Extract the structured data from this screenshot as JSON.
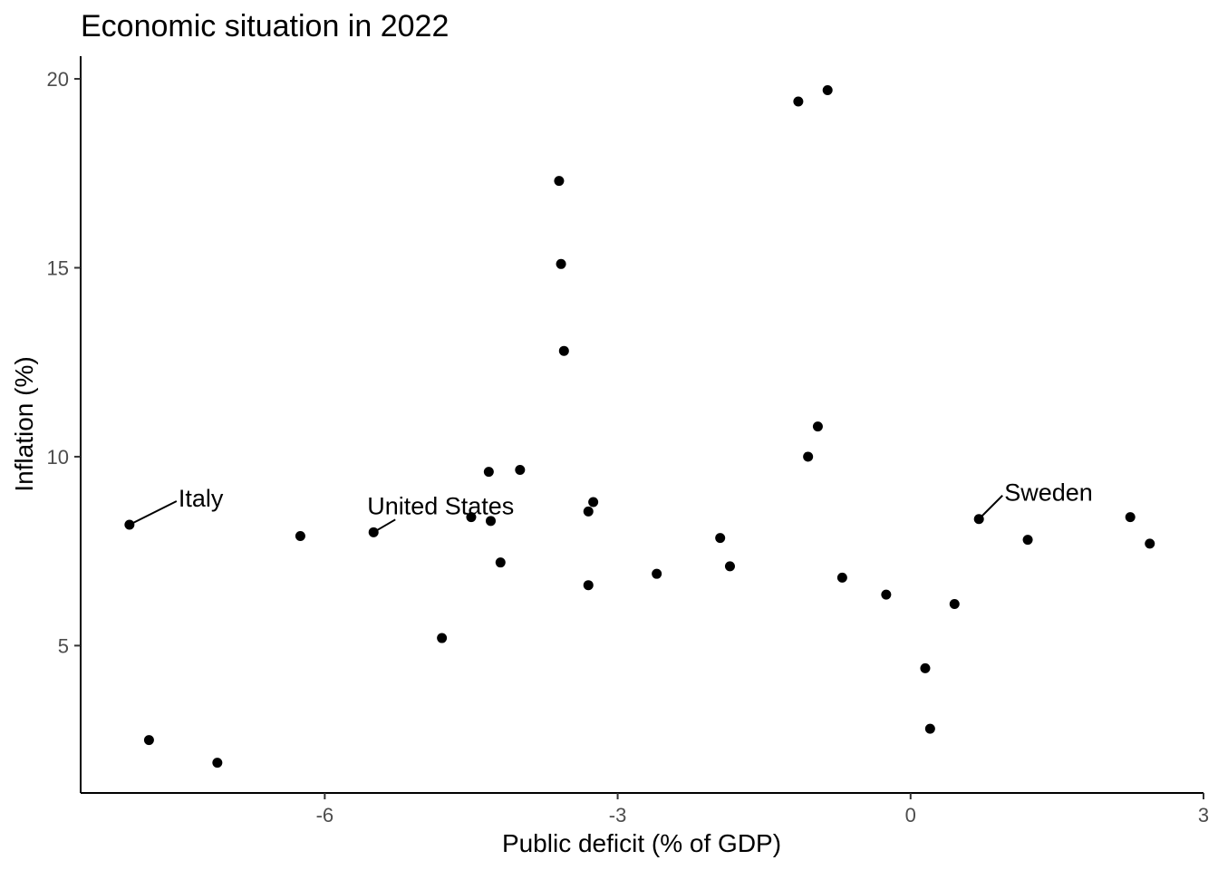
{
  "chart_data": {
    "type": "scatter",
    "title": "Economic situation in 2022",
    "xlabel": "Public deficit (% of GDP)",
    "ylabel": "Inflation (%)",
    "xlim": [
      -8.5,
      3.0
    ],
    "ylim": [
      1.1,
      20.6
    ],
    "xticks": [
      -6,
      -3,
      0,
      3
    ],
    "yticks": [
      5,
      10,
      15,
      20
    ],
    "grid": false,
    "points": [
      {
        "x": -8.0,
        "y": 8.2
      },
      {
        "x": -7.8,
        "y": 2.5
      },
      {
        "x": -7.1,
        "y": 1.9
      },
      {
        "x": -6.25,
        "y": 7.9
      },
      {
        "x": -5.5,
        "y": 8.0
      },
      {
        "x": -4.8,
        "y": 5.2
      },
      {
        "x": -4.5,
        "y": 8.4
      },
      {
        "x": -4.32,
        "y": 9.6
      },
      {
        "x": -4.3,
        "y": 8.3
      },
      {
        "x": -4.2,
        "y": 7.2
      },
      {
        "x": -4.0,
        "y": 9.65
      },
      {
        "x": -3.6,
        "y": 17.3
      },
      {
        "x": -3.58,
        "y": 15.1
      },
      {
        "x": -3.55,
        "y": 12.8
      },
      {
        "x": -3.3,
        "y": 6.6
      },
      {
        "x": -3.3,
        "y": 8.55
      },
      {
        "x": -3.25,
        "y": 8.8
      },
      {
        "x": -2.6,
        "y": 6.9
      },
      {
        "x": -1.95,
        "y": 7.85
      },
      {
        "x": -1.85,
        "y": 7.1
      },
      {
        "x": -1.15,
        "y": 19.4
      },
      {
        "x": -1.05,
        "y": 10.0
      },
      {
        "x": -0.95,
        "y": 10.8
      },
      {
        "x": -0.85,
        "y": 19.7
      },
      {
        "x": -0.7,
        "y": 6.8
      },
      {
        "x": -0.25,
        "y": 6.35
      },
      {
        "x": 0.15,
        "y": 4.4
      },
      {
        "x": 0.2,
        "y": 2.8
      },
      {
        "x": 0.45,
        "y": 6.1
      },
      {
        "x": 0.7,
        "y": 8.35
      },
      {
        "x": 1.2,
        "y": 7.8
      },
      {
        "x": 2.25,
        "y": 8.4
      },
      {
        "x": 2.45,
        "y": 7.7
      }
    ],
    "labels": [
      {
        "text": "Italy",
        "x": -8.0,
        "y": 8.2
      },
      {
        "text": "United States",
        "x": -5.5,
        "y": 8.0
      },
      {
        "text": "Sweden",
        "x": 0.7,
        "y": 8.35
      }
    ]
  }
}
